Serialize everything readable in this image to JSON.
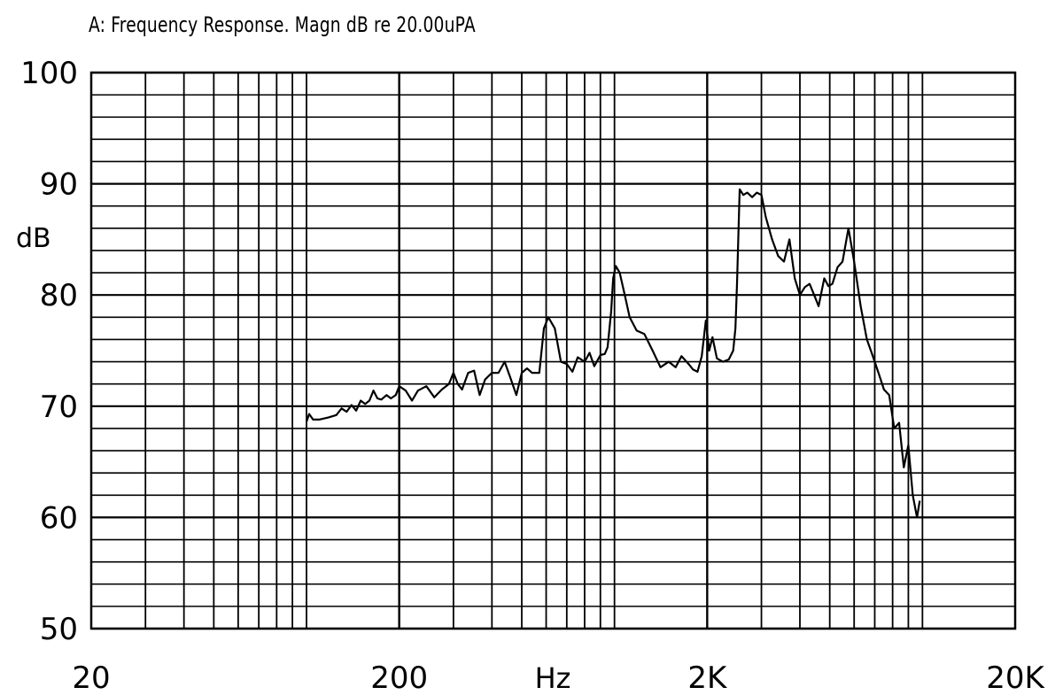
{
  "chart_data": {
    "type": "line",
    "title": "A: Frequency Response. Magn dB re 20.00uPA",
    "xlabel": "Hz",
    "ylabel": "dB",
    "xscale": "log",
    "xlim": [
      20,
      20000
    ],
    "ylim": [
      50,
      100
    ],
    "grid": true,
    "x_ticks": [
      {
        "value": 20,
        "label": "20"
      },
      {
        "value": 200,
        "label": "200"
      },
      {
        "value": 2000,
        "label": "2K"
      },
      {
        "value": 20000,
        "label": "20K"
      }
    ],
    "y_ticks": [
      {
        "value": 50,
        "label": "50"
      },
      {
        "value": 60,
        "label": "60"
      },
      {
        "value": 70,
        "label": "70"
      },
      {
        "value": 80,
        "label": "80"
      },
      {
        "value": 90,
        "label": "90"
      },
      {
        "value": 100,
        "label": "100"
      }
    ],
    "series": [
      {
        "points": [
          [
            100,
            68.6
          ],
          [
            102,
            69.3
          ],
          [
            105,
            68.8
          ],
          [
            110,
            68.8
          ],
          [
            118,
            69.0
          ],
          [
            125,
            69.2
          ],
          [
            130,
            69.8
          ],
          [
            135,
            69.5
          ],
          [
            140,
            70.1
          ],
          [
            145,
            69.6
          ],
          [
            150,
            70.5
          ],
          [
            155,
            70.2
          ],
          [
            160,
            70.5
          ],
          [
            165,
            71.4
          ],
          [
            170,
            70.7
          ],
          [
            175,
            70.6
          ],
          [
            182,
            71.0
          ],
          [
            188,
            70.7
          ],
          [
            195,
            71.0
          ],
          [
            200,
            71.8
          ],
          [
            210,
            71.4
          ],
          [
            220,
            70.5
          ],
          [
            230,
            71.4
          ],
          [
            245,
            71.8
          ],
          [
            260,
            70.8
          ],
          [
            275,
            71.5
          ],
          [
            290,
            72.0
          ],
          [
            300,
            73.0
          ],
          [
            310,
            72.0
          ],
          [
            320,
            71.5
          ],
          [
            335,
            73.0
          ],
          [
            350,
            73.2
          ],
          [
            365,
            71.0
          ],
          [
            380,
            72.4
          ],
          [
            400,
            73.0
          ],
          [
            420,
            73.0
          ],
          [
            440,
            74.0
          ],
          [
            460,
            72.5
          ],
          [
            480,
            71.0
          ],
          [
            500,
            73.0
          ],
          [
            520,
            73.4
          ],
          [
            540,
            73.0
          ],
          [
            570,
            73.0
          ],
          [
            590,
            77.0
          ],
          [
            610,
            78.0
          ],
          [
            640,
            77.0
          ],
          [
            670,
            74.0
          ],
          [
            700,
            73.8
          ],
          [
            730,
            73.1
          ],
          [
            760,
            74.4
          ],
          [
            800,
            74.0
          ],
          [
            830,
            74.8
          ],
          [
            860,
            73.6
          ],
          [
            900,
            74.6
          ],
          [
            930,
            74.7
          ],
          [
            950,
            75.3
          ],
          [
            975,
            78.5
          ],
          [
            990,
            81.5
          ],
          [
            1010,
            82.6
          ],
          [
            1040,
            82.0
          ],
          [
            1080,
            80.0
          ],
          [
            1120,
            78.0
          ],
          [
            1180,
            76.8
          ],
          [
            1250,
            76.5
          ],
          [
            1330,
            75.0
          ],
          [
            1410,
            73.5
          ],
          [
            1500,
            74.0
          ],
          [
            1580,
            73.5
          ],
          [
            1650,
            74.5
          ],
          [
            1740,
            73.8
          ],
          [
            1800,
            73.3
          ],
          [
            1860,
            73.1
          ],
          [
            1920,
            74.5
          ],
          [
            1980,
            77.7
          ],
          [
            2030,
            75.0
          ],
          [
            2080,
            76.2
          ],
          [
            2150,
            74.3
          ],
          [
            2250,
            74.0
          ],
          [
            2350,
            74.2
          ],
          [
            2430,
            75.0
          ],
          [
            2470,
            77.0
          ],
          [
            2500,
            81.0
          ],
          [
            2550,
            89.5
          ],
          [
            2620,
            89.0
          ],
          [
            2700,
            89.2
          ],
          [
            2800,
            88.8
          ],
          [
            2900,
            89.2
          ],
          [
            3000,
            89.0
          ],
          [
            3100,
            87.0
          ],
          [
            3250,
            85.0
          ],
          [
            3400,
            83.5
          ],
          [
            3550,
            83.0
          ],
          [
            3700,
            85.0
          ],
          [
            3850,
            81.5
          ],
          [
            4000,
            80.0
          ],
          [
            4150,
            80.7
          ],
          [
            4300,
            81.0
          ],
          [
            4450,
            80.0
          ],
          [
            4600,
            79.0
          ],
          [
            4800,
            81.5
          ],
          [
            4950,
            80.8
          ],
          [
            5100,
            81.0
          ],
          [
            5300,
            82.5
          ],
          [
            5500,
            83.0
          ],
          [
            5750,
            86.0
          ],
          [
            6000,
            83.0
          ],
          [
            6300,
            79.0
          ],
          [
            6600,
            76.0
          ],
          [
            6900,
            74.5
          ],
          [
            7200,
            73.0
          ],
          [
            7500,
            71.5
          ],
          [
            7800,
            71.0
          ],
          [
            8100,
            68.0
          ],
          [
            8400,
            68.5
          ],
          [
            8700,
            64.5
          ],
          [
            9000,
            66.5
          ],
          [
            9300,
            62.0
          ],
          [
            9600,
            60.0
          ],
          [
            9800,
            61.5
          ]
        ]
      }
    ]
  }
}
